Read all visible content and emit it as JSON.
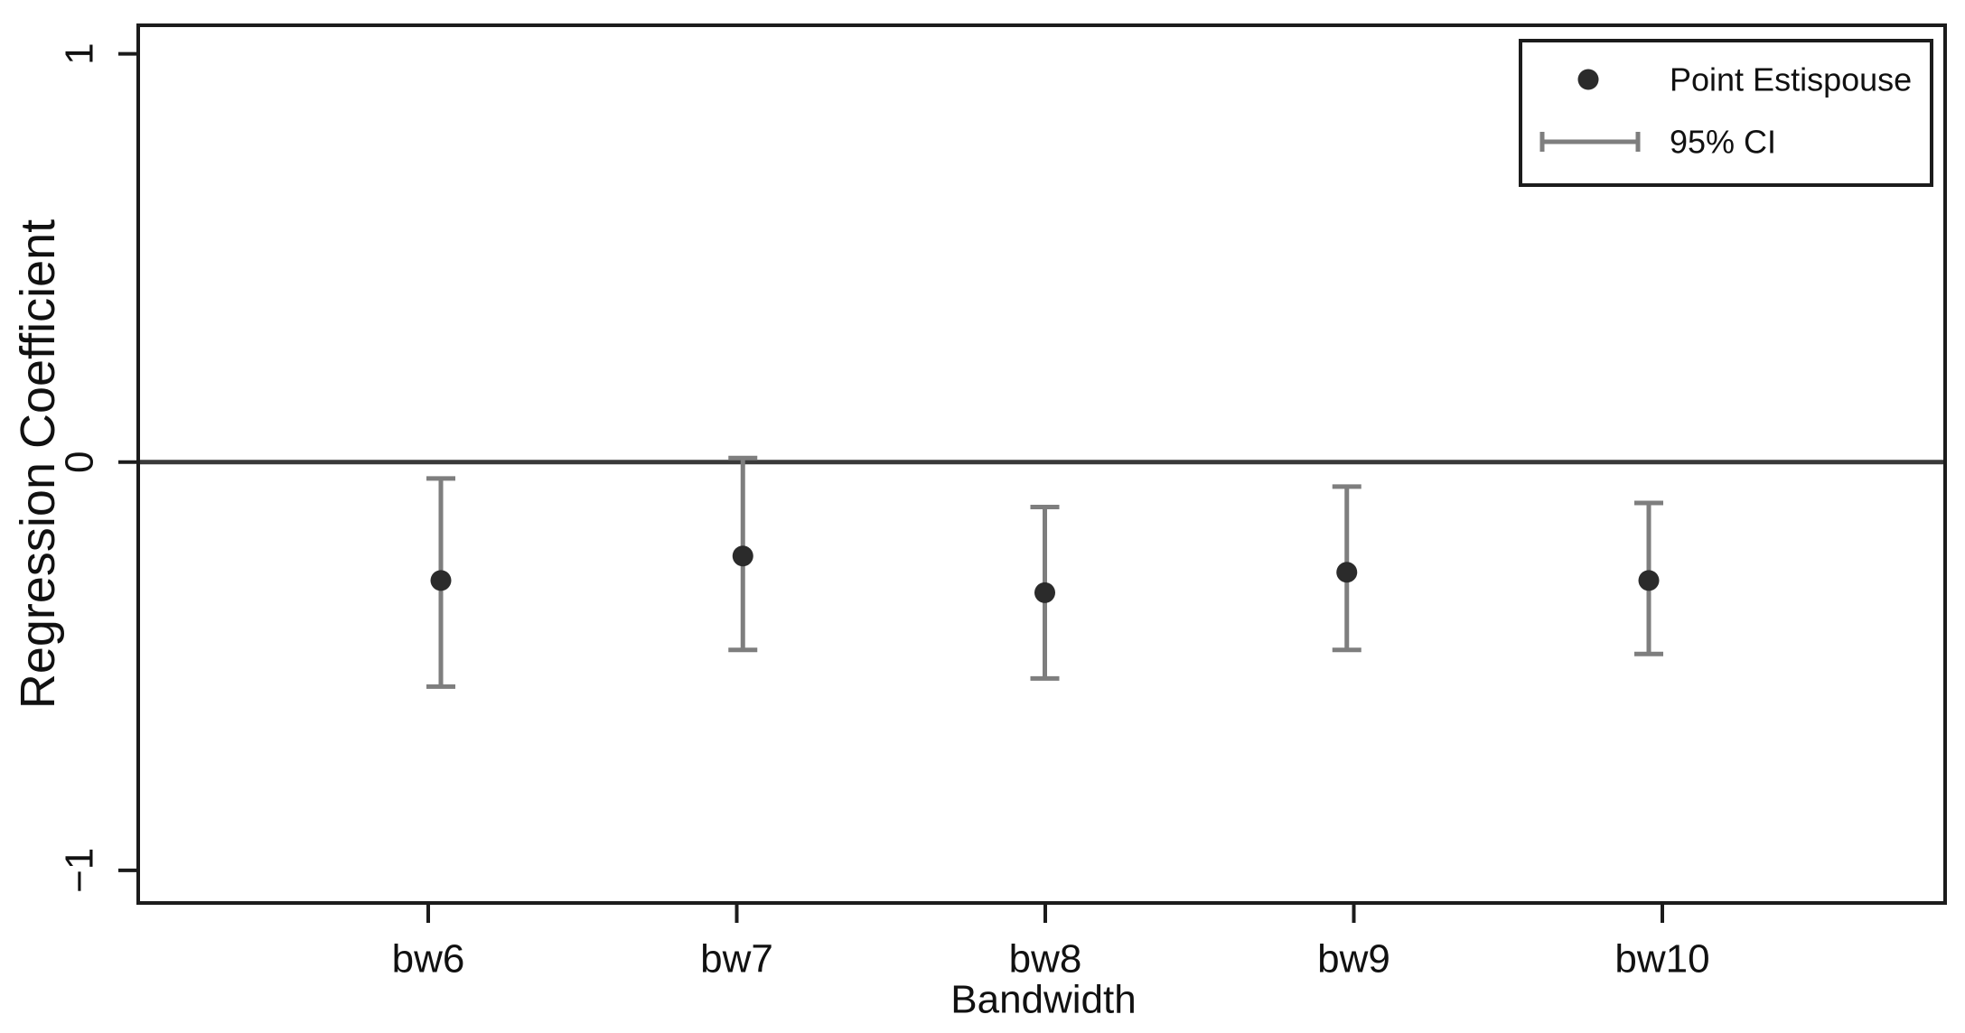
{
  "figure": {
    "background": "#ffffff",
    "description": "Coefficient plot of regression point estimates with 95% confidence intervals across bandwidths"
  },
  "chart_data": {
    "type": "scatter",
    "subtype": "point-estimates-with-error-bars",
    "title": "",
    "xlabel": "Bandwidth",
    "ylabel": "Regression Coefficient",
    "categories": [
      "bw6",
      "bw7",
      "bw8",
      "bw9",
      "bw10"
    ],
    "series": [
      {
        "name": "Point Estispouse",
        "values": [
          -0.29,
          -0.23,
          -0.32,
          -0.27,
          -0.29
        ]
      }
    ],
    "ci_low": [
      -0.55,
      -0.46,
      -0.53,
      -0.46,
      -0.47
    ],
    "ci_high": [
      -0.04,
      0.01,
      -0.11,
      -0.06,
      -0.1
    ],
    "ci_level": "95%",
    "ylim": [
      -1.08,
      1.07
    ],
    "y_ticks": [
      {
        "value": 1,
        "label": "1"
      },
      {
        "value": 0,
        "label": "0"
      },
      {
        "value": -1,
        "label": "−1"
      }
    ],
    "zero_line": true,
    "grid": false,
    "legend": {
      "position": "top-right",
      "entries": [
        {
          "marker": "point",
          "label": "Point Estispouse"
        },
        {
          "marker": "error-bar",
          "label": "95% CI"
        }
      ]
    },
    "colors": {
      "point": "#2b2b2b",
      "ci": "#7e7e7e",
      "axis": "#1c1c1c",
      "zero_line": "#3a3a3a",
      "text": "#111111",
      "legend_border": "#1c1c1c",
      "background": "#ffffff"
    }
  }
}
